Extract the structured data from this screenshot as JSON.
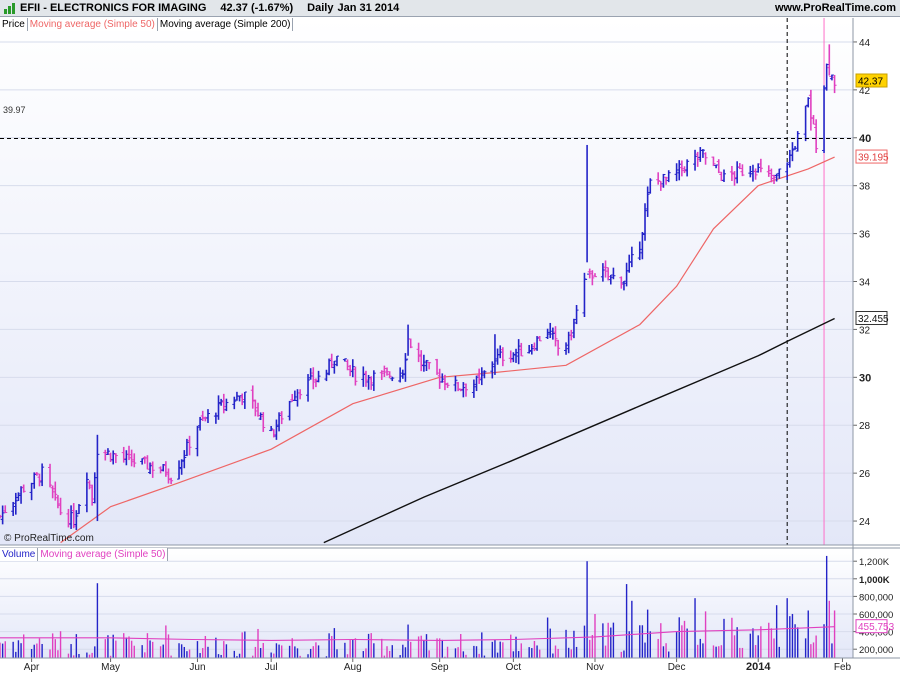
{
  "header": {
    "symbol": "EFII - ELECTRONICS FOR IMAGING",
    "quote": "42.37 (-1.67%)",
    "period": "Daily",
    "date": "Jan 31 2014",
    "source": "www.ProRealTime.com",
    "watermark": "© ProRealTime.com"
  },
  "price_panel": {
    "legend": [
      "Price",
      "Moving average (Simple 50)",
      "Moving average (Simple 200)"
    ],
    "colors": {
      "up": "#2323c8",
      "down": "#e040c0",
      "ma50": "#ee6666",
      "ma200": "#111111",
      "background_top": "#ffffff",
      "background_bottom": "#e3e7f8"
    },
    "hline_label": "39.97",
    "tags": {
      "price": "42.37",
      "ma50": "39.195",
      "ma200": "32.455"
    }
  },
  "volume_panel": {
    "legend": [
      "Volume",
      "Moving average (Simple 50)"
    ],
    "ma_tag": "455,753"
  },
  "chart_data": [
    {
      "type": "ohlc",
      "title": "EFII - ELECTRONICS FOR IMAGING",
      "ylim": [
        23,
        45
      ],
      "y_ticks": [
        24,
        26,
        28,
        30,
        32,
        34,
        36,
        38,
        40,
        42,
        44
      ],
      "bold_ticks": [
        30,
        40
      ],
      "x_range": [
        "2013-03-20",
        "2014-02-07"
      ],
      "months": [
        {
          "label": "Apr",
          "date": "2013-04-01"
        },
        {
          "label": "May",
          "date": "2013-05-01"
        },
        {
          "label": "Jun",
          "date": "2013-06-03"
        },
        {
          "label": "Jul",
          "date": "2013-07-01"
        },
        {
          "label": "Aug",
          "date": "2013-08-01"
        },
        {
          "label": "Sep",
          "date": "2013-09-03"
        },
        {
          "label": "Oct",
          "date": "2013-10-01"
        },
        {
          "label": "Nov",
          "date": "2013-11-01"
        },
        {
          "label": "Dec",
          "date": "2013-12-02"
        },
        {
          "label": "2014",
          "date": "2014-01-02",
          "bold": true
        },
        {
          "label": "Feb",
          "date": "2014-02-03"
        }
      ],
      "horizontal_line": 39.97,
      "vertical_lines": [
        {
          "date": "2014-01-13",
          "style": "dashed"
        },
        {
          "date": "2014-01-27",
          "style": "pink"
        }
      ],
      "price_path": [
        [
          "2013-03-20",
          24.2
        ],
        [
          "2013-03-28",
          25.3
        ],
        [
          "2013-04-05",
          26.0
        ],
        [
          "2013-04-12",
          24.4
        ],
        [
          "2013-04-17",
          24.0
        ],
        [
          "2013-04-22",
          26.0
        ],
        [
          "2013-04-24",
          25.0
        ],
        [
          "2013-04-26",
          27.0
        ],
        [
          "2013-05-06",
          26.6
        ],
        [
          "2013-05-16",
          26.3
        ],
        [
          "2013-05-22",
          26.1
        ],
        [
          "2013-05-24",
          25.9
        ],
        [
          "2013-05-29",
          26.8
        ],
        [
          "2013-06-03",
          28.0
        ],
        [
          "2013-06-12",
          28.8
        ],
        [
          "2013-06-20",
          29.3
        ],
        [
          "2013-06-25",
          28.7
        ],
        [
          "2013-07-01",
          27.6
        ],
        [
          "2013-07-10",
          29.4
        ],
        [
          "2013-07-22",
          30.2
        ],
        [
          "2013-07-25",
          30.9
        ],
        [
          "2013-08-02",
          30.1
        ],
        [
          "2013-08-12",
          30.0
        ],
        [
          "2013-08-20",
          30.3
        ],
        [
          "2013-08-22",
          31.6
        ],
        [
          "2013-08-27",
          30.6
        ],
        [
          "2013-09-03",
          30.0
        ],
        [
          "2013-09-10",
          29.6
        ],
        [
          "2013-09-18",
          29.8
        ],
        [
          "2013-09-24",
          30.8
        ],
        [
          "2013-10-01",
          31.0
        ],
        [
          "2013-10-07",
          31.2
        ],
        [
          "2013-10-14",
          32.0
        ],
        [
          "2013-10-18",
          31.2
        ],
        [
          "2013-10-22",
          31.5
        ],
        [
          "2013-10-28",
          34.0
        ],
        [
          "2013-11-01",
          34.4
        ],
        [
          "2013-11-06",
          34.2
        ],
        [
          "2013-11-12",
          34.1
        ],
        [
          "2013-11-18",
          35.6
        ],
        [
          "2013-11-22",
          38.1
        ],
        [
          "2013-11-29",
          38.3
        ],
        [
          "2013-12-06",
          38.9
        ],
        [
          "2013-12-12",
          39.3
        ],
        [
          "2013-12-20",
          38.3
        ],
        [
          "2013-12-31",
          38.8
        ],
        [
          "2014-01-08",
          38.2
        ],
        [
          "2014-01-14",
          39.2
        ],
        [
          "2014-01-17",
          40.0
        ],
        [
          "2014-01-21",
          41.5
        ],
        [
          "2014-01-24",
          39.8
        ],
        [
          "2014-01-28",
          43.0
        ],
        [
          "2014-01-31",
          42.37
        ]
      ],
      "spikes": [
        {
          "date": "2013-04-26",
          "high": 27.6,
          "low": 24.0
        },
        {
          "date": "2013-08-22",
          "high": 32.2,
          "low": 30.9
        },
        {
          "date": "2013-09-24",
          "high": 31.8,
          "low": 30.1
        },
        {
          "date": "2013-10-29",
          "high": 39.7,
          "low": 34.8
        },
        {
          "date": "2014-01-22",
          "high": 42.0,
          "low": 40.3
        },
        {
          "date": "2014-01-29",
          "high": 43.9,
          "low": 42.6
        }
      ],
      "series": [
        {
          "name": "Moving average (Simple 50)",
          "points": [
            [
              "2013-04-12",
              23.1
            ],
            [
              "2013-05-01",
              24.6
            ],
            [
              "2013-05-27",
              25.6
            ],
            [
              "2013-07-01",
              27.0
            ],
            [
              "2013-08-01",
              28.9
            ],
            [
              "2013-09-03",
              30.0
            ],
            [
              "2013-09-24",
              30.2
            ],
            [
              "2013-10-21",
              30.5
            ],
            [
              "2013-11-18",
              32.2
            ],
            [
              "2013-12-02",
              33.8
            ],
            [
              "2013-12-16",
              36.2
            ],
            [
              "2014-01-02",
              38.0
            ],
            [
              "2014-01-21",
              38.7
            ],
            [
              "2014-01-31",
              39.195
            ]
          ]
        },
        {
          "name": "Moving average (Simple 200)",
          "points": [
            [
              "2013-07-21",
              23.1
            ],
            [
              "2013-08-28",
              25.0
            ],
            [
              "2013-09-30",
              26.5
            ],
            [
              "2013-11-20",
              28.9
            ],
            [
              "2013-12-18",
              30.2
            ],
            [
              "2014-01-02",
              30.9
            ],
            [
              "2014-01-13",
              31.5
            ],
            [
              "2014-01-31",
              32.455
            ]
          ]
        }
      ]
    },
    {
      "type": "bar",
      "title": "Volume",
      "ylim": [
        100000,
        1350000
      ],
      "y_ticks": [
        200000,
        400000,
        600000,
        800000,
        1000000,
        1200000
      ],
      "y_tick_labels": [
        "200,000",
        "400,000",
        "600,000",
        "800,000",
        "1,000K",
        "1,200K"
      ],
      "ma_last": 455753,
      "base_volume": [
        [
          "2013-03-20",
          300000
        ],
        [
          "2013-05-01",
          260000
        ],
        [
          "2013-07-01",
          270000
        ],
        [
          "2013-09-03",
          250000
        ],
        [
          "2013-10-21",
          300000
        ],
        [
          "2013-11-15",
          380000
        ],
        [
          "2014-01-02",
          380000
        ],
        [
          "2014-01-31",
          440000
        ]
      ],
      "volume_spikes": [
        [
          "2013-04-26",
          950000
        ],
        [
          "2013-05-22",
          470000
        ],
        [
          "2013-06-26",
          430000
        ],
        [
          "2013-07-25",
          440000
        ],
        [
          "2013-08-22",
          480000
        ],
        [
          "2013-10-14",
          560000
        ],
        [
          "2013-10-29",
          1200000
        ],
        [
          "2013-11-01",
          600000
        ],
        [
          "2013-11-13",
          940000
        ],
        [
          "2013-11-15",
          750000
        ],
        [
          "2013-11-21",
          650000
        ],
        [
          "2013-12-09",
          780000
        ],
        [
          "2013-12-13",
          630000
        ],
        [
          "2014-01-09",
          700000
        ],
        [
          "2014-01-13",
          780000
        ],
        [
          "2014-01-21",
          640000
        ],
        [
          "2014-01-28",
          1260000
        ],
        [
          "2014-01-29",
          750000
        ]
      ],
      "series": [
        {
          "name": "Moving average (Simple 50)",
          "points": [
            [
              "2013-03-20",
              330000
            ],
            [
              "2013-05-01",
              330000
            ],
            [
              "2013-06-01",
              310000
            ],
            [
              "2013-07-01",
              300000
            ],
            [
              "2013-08-01",
              310000
            ],
            [
              "2013-09-03",
              300000
            ],
            [
              "2013-10-01",
              310000
            ],
            [
              "2013-11-01",
              340000
            ],
            [
              "2013-12-02",
              400000
            ],
            [
              "2014-01-02",
              420000
            ],
            [
              "2014-01-31",
              455753
            ]
          ]
        }
      ]
    }
  ]
}
